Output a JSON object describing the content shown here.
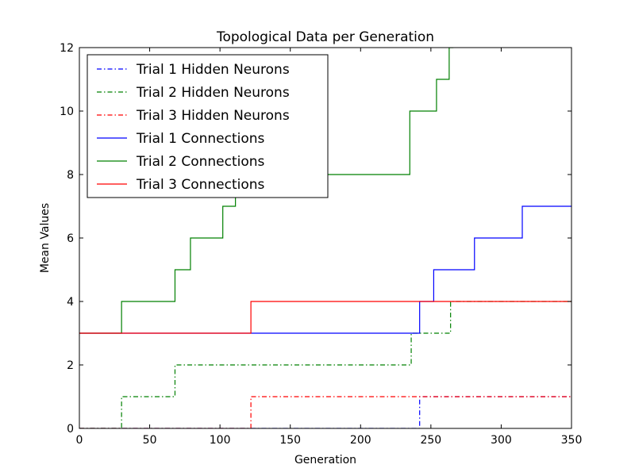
{
  "chart_data": {
    "type": "line",
    "title": "Topological Data per Generation",
    "xlabel": "Generation",
    "ylabel": "Mean Values",
    "xlim": [
      0,
      350
    ],
    "ylim": [
      0,
      12
    ],
    "xticks": [
      0,
      50,
      100,
      150,
      200,
      250,
      300,
      350
    ],
    "yticks": [
      0,
      2,
      4,
      6,
      8,
      10,
      12
    ],
    "grid": false,
    "legend_position": "top-left",
    "series": [
      {
        "name": "Trial 1 Hidden Neurons",
        "color": "#0000ff",
        "style": "dashdot",
        "x": [
          0,
          242,
          242,
          350
        ],
        "y": [
          0,
          0,
          1,
          1
        ]
      },
      {
        "name": "Trial 2 Hidden Neurons",
        "color": "#008000",
        "style": "dashdot",
        "x": [
          0,
          30,
          30,
          68,
          68,
          236,
          236,
          264,
          264,
          350
        ],
        "y": [
          0,
          0,
          1,
          1,
          2,
          2,
          3,
          3,
          4,
          4
        ]
      },
      {
        "name": "Trial 3 Hidden Neurons",
        "color": "#ff0000",
        "style": "dashdot",
        "x": [
          0,
          122,
          122,
          350
        ],
        "y": [
          0,
          0,
          1,
          1
        ]
      },
      {
        "name": "Trial 1 Connections",
        "color": "#0000ff",
        "style": "solid",
        "x": [
          0,
          242,
          242,
          252,
          252,
          281,
          281,
          315,
          315,
          350
        ],
        "y": [
          3,
          3,
          4,
          4,
          5,
          5,
          6,
          6,
          7,
          7
        ]
      },
      {
        "name": "Trial 2 Connections",
        "color": "#008000",
        "style": "solid",
        "x": [
          0,
          30,
          30,
          68,
          68,
          79,
          79,
          102,
          102,
          111,
          111,
          123,
          123,
          235,
          235,
          254,
          254,
          263,
          263,
          266
        ],
        "y": [
          3,
          3,
          4,
          4,
          5,
          5,
          6,
          6,
          7,
          7,
          8,
          8,
          8,
          8,
          10,
          10,
          11,
          11,
          12,
          12
        ]
      },
      {
        "name": "Trial 3 Connections",
        "color": "#ff0000",
        "style": "solid",
        "x": [
          0,
          122,
          122,
          350
        ],
        "y": [
          3,
          3,
          4,
          4
        ]
      }
    ]
  }
}
